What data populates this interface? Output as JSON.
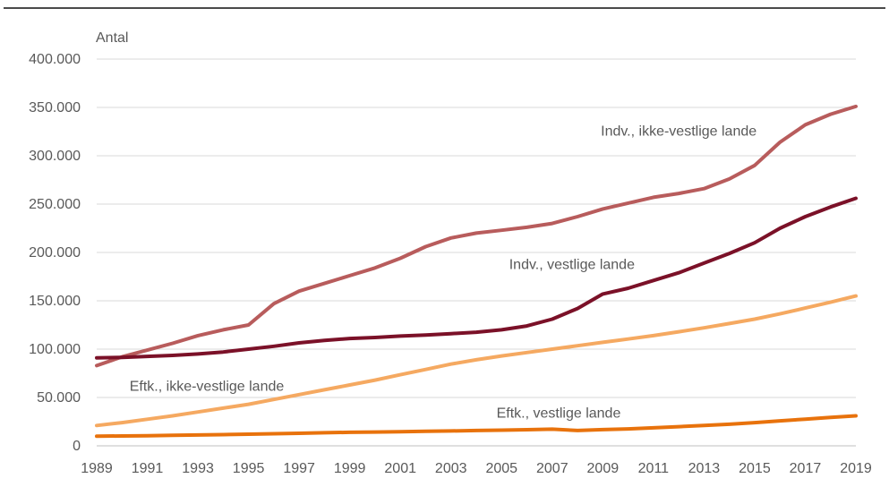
{
  "chart_data": {
    "type": "line",
    "ylabel": "Antal",
    "ylim": [
      0,
      400000
    ],
    "yticks": [
      0,
      50000,
      100000,
      150000,
      200000,
      250000,
      300000,
      350000,
      400000
    ],
    "ytick_labels": [
      "0",
      "50.000",
      "100.000",
      "150.000",
      "200.000",
      "250.000",
      "300.000",
      "350.000",
      "400.000"
    ],
    "x": [
      1989,
      1990,
      1991,
      1992,
      1993,
      1994,
      1995,
      1996,
      1997,
      1998,
      1999,
      2000,
      2001,
      2002,
      2003,
      2004,
      2005,
      2006,
      2007,
      2008,
      2009,
      2010,
      2011,
      2012,
      2013,
      2014,
      2015,
      2016,
      2017,
      2018,
      2019
    ],
    "xtick_labels": [
      "1989",
      "1991",
      "1993",
      "1995",
      "1997",
      "1999",
      "2001",
      "2003",
      "2005",
      "2007",
      "2009",
      "2011",
      "2013",
      "2015",
      "2017",
      "2019"
    ],
    "grid": "horizontal",
    "series": [
      {
        "name": "Indv., ikke-vestlige lande",
        "color": "#b85c5c",
        "values": [
          83000,
          92000,
          99000,
          106000,
          114000,
          120000,
          125000,
          147000,
          160000,
          168000,
          176000,
          184000,
          194000,
          206000,
          215000,
          220000,
          223000,
          226000,
          230000,
          237000,
          245000,
          251000,
          257000,
          261000,
          266000,
          276000,
          290000,
          314000,
          332000,
          343000,
          351000
        ]
      },
      {
        "name": "Indv., vestlige lande",
        "color": "#7b1128",
        "values": [
          91000,
          91500,
          92500,
          93500,
          95000,
          97000,
          100000,
          103000,
          106500,
          109000,
          111000,
          112000,
          113500,
          114500,
          116000,
          117500,
          120000,
          124000,
          131000,
          142000,
          157000,
          163000,
          171000,
          179000,
          189000,
          199000,
          210000,
          225000,
          237000,
          247000,
          256000
        ]
      },
      {
        "name": "Eftk., ikke-vestlige lande",
        "color": "#f5a961",
        "values": [
          21000,
          24000,
          27500,
          31000,
          35000,
          39000,
          43000,
          48000,
          53000,
          58000,
          63000,
          68000,
          73500,
          79000,
          84500,
          89000,
          93000,
          96500,
          100000,
          103500,
          107000,
          110500,
          114000,
          118000,
          122000,
          126500,
          131000,
          136500,
          142500,
          148500,
          155000
        ]
      },
      {
        "name": "Eftk., vestlige lande",
        "color": "#e8720c",
        "values": [
          10000,
          10200,
          10500,
          10800,
          11200,
          11600,
          12000,
          12500,
          13000,
          13500,
          14000,
          14300,
          14600,
          15000,
          15400,
          15800,
          16200,
          16700,
          17200,
          15800,
          16800,
          17500,
          18600,
          19800,
          21000,
          22300,
          24000,
          25800,
          27600,
          29400,
          31000
        ]
      }
    ]
  }
}
